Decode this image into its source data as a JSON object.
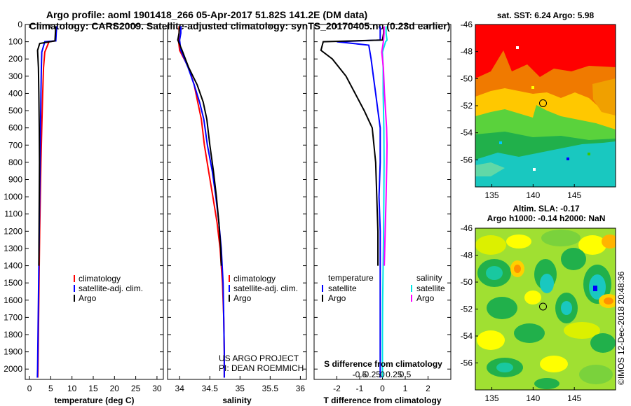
{
  "title_line1": "Argo profile: aoml 1901418_266 05-Apr-2017 51.82S 141.2E (DM data)",
  "title_line2": "Climatology: CARS2009. Satellite-adjusted climatology: synTS_20170405.nc (0.23d earlier)",
  "colors": {
    "climatology": "#ff0000",
    "satellite": "#0000ff",
    "argo": "#000000",
    "s_satellite": "#00e5e5",
    "s_argo": "#ff00ff"
  },
  "chart_data": [
    {
      "type": "line",
      "id": "temperature",
      "xlabel": "temperature (deg C)",
      "xlim": [
        -1,
        31.5
      ],
      "xticks": [
        0,
        5,
        10,
        15,
        20,
        25,
        30
      ],
      "ylim": [
        2060,
        0
      ],
      "yticks": [
        0,
        100,
        200,
        300,
        400,
        500,
        600,
        700,
        800,
        900,
        1000,
        1100,
        1200,
        1300,
        1400,
        1500,
        1600,
        1700,
        1800,
        1900,
        2000
      ],
      "legend": [
        "climatology",
        "satellite-adj. clim.",
        "Argo"
      ],
      "series": [
        {
          "name": "climatology",
          "color": "#ff0000",
          "points": [
            [
              6.3,
              10
            ],
            [
              6.2,
              50
            ],
            [
              6.1,
              95
            ],
            [
              4.6,
              100
            ],
            [
              3.6,
              160
            ],
            [
              3.3,
              250
            ],
            [
              3.1,
              400
            ],
            [
              2.9,
              600
            ],
            [
              2.7,
              800
            ],
            [
              2.55,
              1000
            ],
            [
              2.4,
              1200
            ],
            [
              2.3,
              1400
            ],
            [
              2.2,
              1600
            ],
            [
              2.1,
              1800
            ],
            [
              2.0,
              2000
            ],
            [
              1.95,
              2050
            ]
          ]
        },
        {
          "name": "satellite-adj. clim.",
          "color": "#0000ff",
          "points": [
            [
              6.4,
              10
            ],
            [
              6.3,
              50
            ],
            [
              6.2,
              95
            ],
            [
              3.6,
              100
            ],
            [
              2.9,
              160
            ],
            [
              2.8,
              250
            ],
            [
              2.7,
              400
            ],
            [
              2.6,
              600
            ],
            [
              2.5,
              800
            ],
            [
              2.4,
              1000
            ],
            [
              2.3,
              1200
            ],
            [
              2.2,
              1400
            ],
            [
              2.1,
              1600
            ],
            [
              2.0,
              1800
            ],
            [
              1.9,
              2000
            ],
            [
              1.85,
              2050
            ]
          ]
        },
        {
          "name": "Argo",
          "color": "#000000",
          "points": [
            [
              6.2,
              10
            ],
            [
              6.1,
              50
            ],
            [
              6.0,
              95
            ],
            [
              2.4,
              110
            ],
            [
              1.9,
              150
            ],
            [
              2.1,
              250
            ],
            [
              2.2,
              400
            ],
            [
              2.3,
              600
            ],
            [
              2.35,
              800
            ],
            [
              2.3,
              1000
            ],
            [
              2.25,
              1200
            ],
            [
              2.2,
              1400
            ]
          ]
        }
      ]
    },
    {
      "type": "line",
      "id": "salinity",
      "xlabel": "salinity",
      "xlim": [
        33.8,
        36.1
      ],
      "xticks": [
        34,
        34.5,
        35,
        35.5,
        36
      ],
      "xticklabels": [
        "34",
        "34.5",
        "35",
        "35.5",
        "36"
      ],
      "ylim": [
        2060,
        0
      ],
      "legend": [
        "climatology",
        "satellite-adj. clim.",
        "Argo"
      ],
      "series": [
        {
          "name": "climatology",
          "color": "#ff0000",
          "points": [
            [
              33.99,
              10
            ],
            [
              33.99,
              50
            ],
            [
              33.98,
              90
            ],
            [
              34.0,
              150
            ],
            [
              34.15,
              250
            ],
            [
              34.24,
              350
            ],
            [
              34.3,
              450
            ],
            [
              34.36,
              550
            ],
            [
              34.41,
              700
            ],
            [
              34.48,
              850
            ],
            [
              34.55,
              1000
            ],
            [
              34.62,
              1150
            ],
            [
              34.67,
              1300
            ],
            [
              34.71,
              1500
            ],
            [
              34.73,
              1700
            ],
            [
              34.74,
              1900
            ],
            [
              34.74,
              2050
            ]
          ]
        },
        {
          "name": "satellite-adj. clim.",
          "color": "#0000ff",
          "points": [
            [
              34.02,
              10
            ],
            [
              34.02,
              50
            ],
            [
              34.0,
              90
            ],
            [
              34.02,
              150
            ],
            [
              34.14,
              250
            ],
            [
              34.24,
              350
            ],
            [
              34.33,
              450
            ],
            [
              34.4,
              550
            ],
            [
              34.46,
              700
            ],
            [
              34.54,
              850
            ],
            [
              34.6,
              1000
            ],
            [
              34.65,
              1150
            ],
            [
              34.69,
              1300
            ],
            [
              34.72,
              1500
            ],
            [
              34.73,
              1700
            ],
            [
              34.74,
              1900
            ],
            [
              34.74,
              2050
            ]
          ]
        },
        {
          "name": "Argo",
          "color": "#000000",
          "points": [
            [
              34.0,
              10
            ],
            [
              33.99,
              50
            ],
            [
              33.97,
              90
            ],
            [
              34.04,
              150
            ],
            [
              34.15,
              250
            ],
            [
              34.29,
              350
            ],
            [
              34.39,
              450
            ],
            [
              34.45,
              550
            ],
            [
              34.5,
              700
            ],
            [
              34.56,
              850
            ],
            [
              34.61,
              1000
            ],
            [
              34.65,
              1150
            ],
            [
              34.68,
              1300
            ],
            [
              34.69,
              1400
            ]
          ]
        }
      ],
      "annotations": [
        "US ARGO PROJECT",
        "PI: DEAN ROEMMICH"
      ]
    },
    {
      "type": "line",
      "id": "difference",
      "xlabel": "T difference from climatology",
      "xlim": [
        -3.0,
        3.0
      ],
      "xticks": [
        -2,
        -1,
        0,
        1,
        2
      ],
      "xticklabels": [
        "-2",
        "-1",
        "0",
        "1",
        "2"
      ],
      "top_xlabel": "S difference from climatology",
      "top_xticks": [
        -0.5,
        -0.25,
        0,
        0.25,
        0.5
      ],
      "top_xticklabels": [
        "-0.5",
        "-0.25",
        "0",
        "0.25",
        "0.5"
      ],
      "ylim": [
        2060,
        0
      ],
      "legend_left_title": "temperature",
      "legend_left": [
        "satellite",
        "Argo"
      ],
      "legend_right_title": "salinity",
      "legend_right": [
        "satellite",
        "Argo"
      ],
      "series": [
        {
          "name": "T satellite",
          "color": "#0000ff",
          "points": [
            [
              -0.1,
              10
            ],
            [
              -0.1,
              50
            ],
            [
              -0.1,
              90
            ],
            [
              -2.0,
              100
            ],
            [
              -0.6,
              120
            ],
            [
              -0.5,
              200
            ],
            [
              -0.4,
              300
            ],
            [
              -0.3,
              400
            ],
            [
              -0.2,
              500
            ],
            [
              -0.1,
              600
            ],
            [
              -0.1,
              800
            ],
            [
              -0.15,
              1000
            ],
            [
              -0.1,
              1200
            ],
            [
              -0.1,
              1400
            ],
            [
              -0.1,
              1600
            ],
            [
              -0.1,
              1800
            ],
            [
              -0.1,
              2000
            ],
            [
              -0.1,
              2050
            ]
          ]
        },
        {
          "name": "T Argo",
          "color": "#000000",
          "points": [
            [
              0.05,
              10
            ],
            [
              0.05,
              50
            ],
            [
              0.0,
              90
            ],
            [
              -2.6,
              100
            ],
            [
              -2.7,
              150
            ],
            [
              -2.2,
              200
            ],
            [
              -1.6,
              300
            ],
            [
              -1.2,
              400
            ],
            [
              -0.8,
              500
            ],
            [
              -0.45,
              600
            ],
            [
              -0.3,
              800
            ],
            [
              -0.25,
              1000
            ],
            [
              -0.2,
              1200
            ],
            [
              -0.2,
              1400
            ]
          ]
        },
        {
          "name": "S satellite",
          "color": "#00e5e5",
          "points": [
            [
              0.16,
              10
            ],
            [
              0.16,
              50
            ],
            [
              0.2,
              90
            ],
            [
              0.14,
              100
            ],
            [
              0.0,
              160
            ],
            [
              0.03,
              250
            ],
            [
              0.03,
              400
            ],
            [
              0.06,
              600
            ],
            [
              0.07,
              800
            ],
            [
              0.06,
              1000
            ],
            [
              0.05,
              1200
            ],
            [
              0.03,
              1400
            ],
            [
              0.01,
              1600
            ],
            [
              0.0,
              1800
            ],
            [
              0.0,
              2000
            ],
            [
              0.0,
              2050
            ]
          ]
        },
        {
          "name": "S Argo",
          "color": "#ff00ff",
          "points": [
            [
              0.07,
              10
            ],
            [
              0.07,
              50
            ],
            [
              0.05,
              90
            ],
            [
              0.04,
              100
            ],
            [
              -0.03,
              160
            ],
            [
              0.04,
              250
            ],
            [
              0.09,
              400
            ],
            [
              0.18,
              600
            ],
            [
              0.2,
              700
            ],
            [
              0.19,
              800
            ],
            [
              0.16,
              1000
            ],
            [
              0.12,
              1200
            ],
            [
              0.08,
              1400
            ]
          ]
        }
      ]
    }
  ],
  "map_sst": {
    "title": "sat. SST: 6.24 Argo: 5.98",
    "xticks": [
      {
        "v": 135,
        "t": "135"
      },
      {
        "v": 140,
        "t": "140"
      },
      {
        "v": 145,
        "t": "145"
      }
    ],
    "yticks": [
      {
        "v": -46,
        "t": "-46"
      },
      {
        "v": -48,
        "t": "-48"
      },
      {
        "v": -50,
        "t": "-50"
      },
      {
        "v": -52,
        "t": "-52"
      },
      {
        "v": -54,
        "t": "-54"
      },
      {
        "v": -56,
        "t": "-56"
      }
    ],
    "lon": [
      133,
      150
    ],
    "lat": [
      -58,
      -46
    ],
    "argo_lon": 141.2,
    "argo_lat": -51.82
  },
  "map_sla": {
    "title_line1": "Altim. SLA: -0.17",
    "title_line2": "Argo h1000: -0.14 h2000: NaN",
    "xticks": [
      {
        "v": 135,
        "t": "135"
      },
      {
        "v": 140,
        "t": "140"
      },
      {
        "v": 145,
        "t": "145"
      }
    ],
    "yticks": [
      {
        "v": -46,
        "t": "-46"
      },
      {
        "v": -48,
        "t": "-48"
      },
      {
        "v": -50,
        "t": "-50"
      },
      {
        "v": -52,
        "t": "-52"
      },
      {
        "v": -54,
        "t": "-54"
      },
      {
        "v": -56,
        "t": "-56"
      }
    ],
    "lon": [
      133,
      150
    ],
    "lat": [
      -58,
      -46
    ],
    "argo_lon": 141.2,
    "argo_lat": -51.82
  },
  "watermark": "©IMOS 12-Dec-2018 20:48:36"
}
